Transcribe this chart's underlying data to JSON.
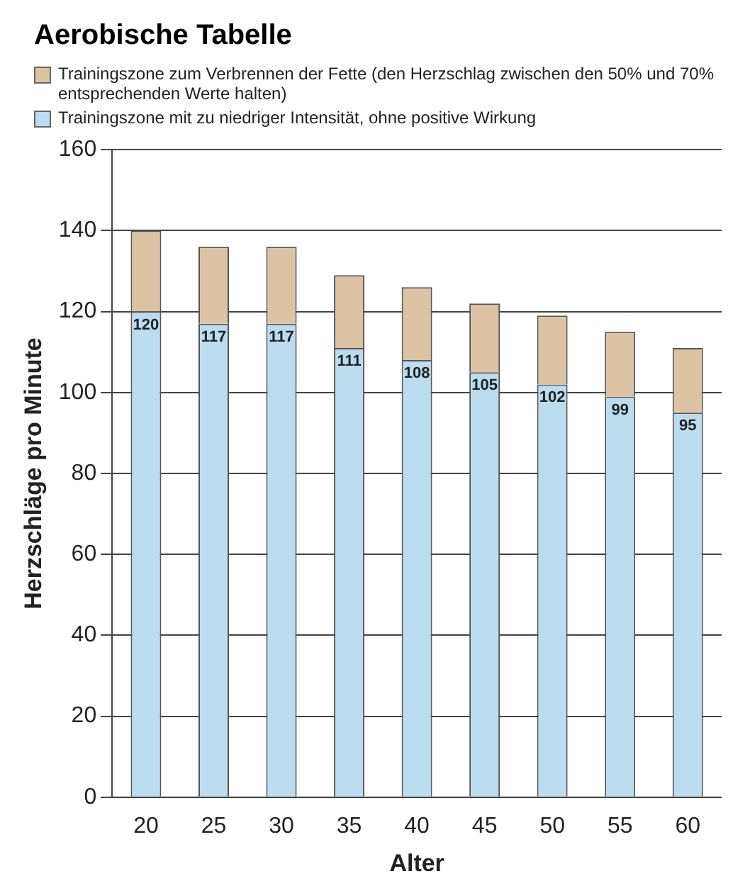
{
  "chart_data": {
    "type": "bar",
    "title": "Aerobische Tabelle",
    "xlabel": "Alter",
    "ylabel": "Herzschläge pro Minute",
    "categories": [
      "20",
      "25",
      "30",
      "35",
      "40",
      "45",
      "50",
      "55",
      "60"
    ],
    "stacked": true,
    "legend": "top left",
    "grid": "y",
    "ylim": [
      0,
      160
    ],
    "yticks": [
      0,
      20,
      40,
      60,
      80,
      100,
      120,
      140,
      160
    ],
    "series": [
      {
        "name": "Trainingszone mit zu niedriger Intensität, ohne positive Wirkung",
        "color": "#bcdcf0",
        "values": [
          120,
          117,
          117,
          111,
          108,
          105,
          102,
          99,
          95
        ],
        "value_labels": [
          "120",
          "117",
          "117",
          "111",
          "108",
          "105",
          "102",
          "99",
          "95"
        ]
      },
      {
        "name": "Trainingszone zum Verbrennen der Fette (den Herzschlag zwischen den 50% und 70% entsprechenden Werte halten)",
        "color": "#dcc3a4",
        "values": [
          20,
          19,
          19,
          18,
          18,
          17,
          17,
          16,
          16
        ]
      }
    ]
  }
}
